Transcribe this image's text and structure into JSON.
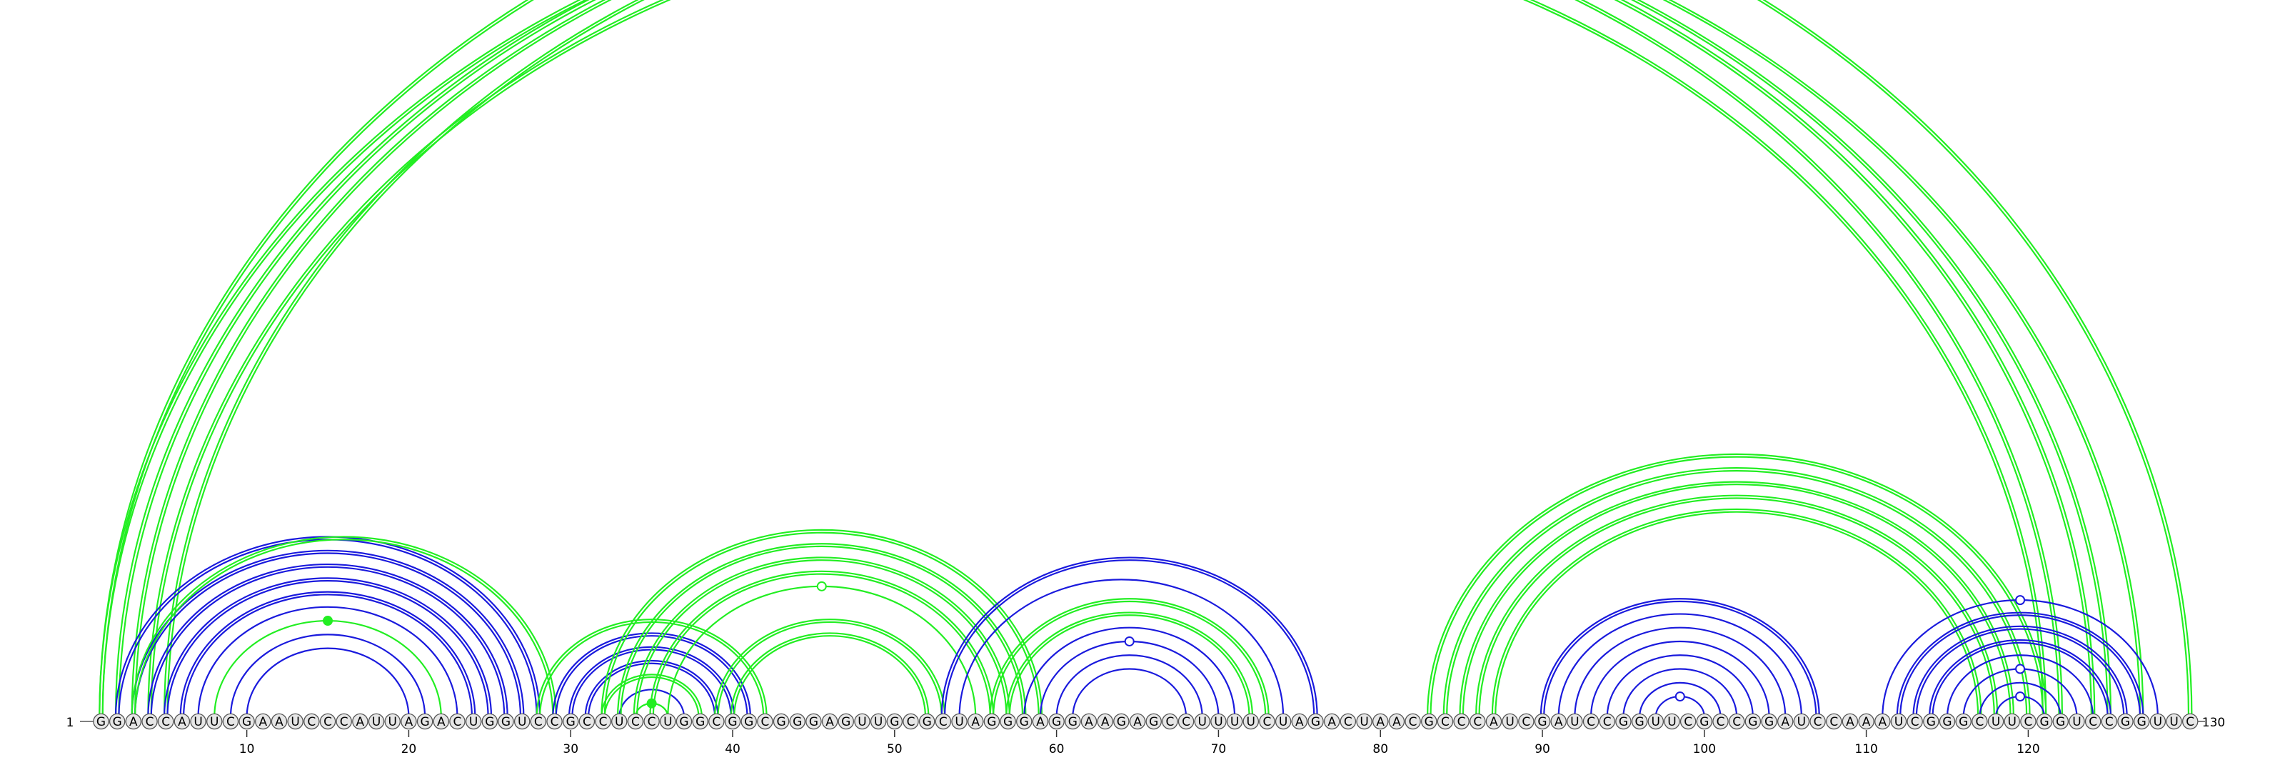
{
  "diagram": {
    "sequence": "GGACCAUUCGAAUCCCAUUAGACUGGUCCGCCUCCUGGCGGCGGGAGUUGCGCUAGGGAGGAAGAGCCUUUUCUAGACUAACGCCCAUCGAUCCGGUUCGCCGGAUCCAAAUCGGGCUUCGGUCCGGUUC",
    "start_label": "1",
    "end_label": "130",
    "tick_labels": [
      "10",
      "20",
      "30",
      "40",
      "50",
      "60",
      "70",
      "80",
      "90",
      "100",
      "110",
      "120"
    ],
    "colors": {
      "green": "#22ee22",
      "blue": "#1a1add",
      "base_fill": "#e6e6e6",
      "base_stroke": "#555555",
      "text": "#000000"
    },
    "arcs": [
      {
        "i": 1,
        "j": 122,
        "color": "green",
        "double": true
      },
      {
        "i": 2,
        "j": 124,
        "color": "green",
        "double": true
      },
      {
        "i": 3,
        "j": 125,
        "color": "green",
        "double": true
      },
      {
        "i": 4,
        "j": 121,
        "color": "green",
        "double": true
      },
      {
        "i": 5,
        "j": 127,
        "color": "green",
        "double": true
      },
      {
        "i": 1,
        "j": 130,
        "color": "green",
        "double": true,
        "marker": "open"
      },
      {
        "i": 2,
        "j": 28,
        "color": "blue",
        "double": true
      },
      {
        "i": 3,
        "j": 27,
        "color": "blue",
        "double": true
      },
      {
        "i": 4,
        "j": 26,
        "color": "blue",
        "double": true
      },
      {
        "i": 5,
        "j": 25,
        "color": "blue",
        "double": true
      },
      {
        "i": 6,
        "j": 24,
        "color": "blue",
        "double": true
      },
      {
        "i": 7,
        "j": 23,
        "color": "blue",
        "double": false
      },
      {
        "i": 8,
        "j": 22,
        "color": "green",
        "double": false,
        "marker": "filled"
      },
      {
        "i": 9,
        "j": 21,
        "color": "blue",
        "double": false
      },
      {
        "i": 10,
        "j": 20,
        "color": "blue",
        "double": false
      },
      {
        "i": 3,
        "j": 29,
        "color": "green",
        "double": true
      },
      {
        "i": 28,
        "j": 42,
        "color": "green",
        "double": true
      },
      {
        "i": 29,
        "j": 41,
        "color": "blue",
        "double": true
      },
      {
        "i": 30,
        "j": 40,
        "color": "blue",
        "double": true
      },
      {
        "i": 31,
        "j": 39,
        "color": "blue",
        "double": true
      },
      {
        "i": 32,
        "j": 38,
        "color": "green",
        "double": true
      },
      {
        "i": 33,
        "j": 37,
        "color": "blue",
        "double": false
      },
      {
        "i": 34,
        "j": 36,
        "color": "green",
        "double": false,
        "marker": "filled"
      },
      {
        "i": 32,
        "j": 59,
        "color": "green",
        "double": true
      },
      {
        "i": 33,
        "j": 58,
        "color": "green",
        "double": true
      },
      {
        "i": 34,
        "j": 57,
        "color": "green",
        "double": true
      },
      {
        "i": 35,
        "j": 56,
        "color": "green",
        "double": true
      },
      {
        "i": 36,
        "j": 55,
        "color": "green",
        "double": false,
        "marker": "open"
      },
      {
        "i": 39,
        "j": 53,
        "color": "green",
        "double": true
      },
      {
        "i": 40,
        "j": 52,
        "color": "green",
        "double": true
      },
      {
        "i": 53,
        "j": 76,
        "color": "blue",
        "double": true
      },
      {
        "i": 54,
        "j": 74,
        "color": "blue",
        "double": false
      },
      {
        "i": 56,
        "j": 73,
        "color": "green",
        "double": true
      },
      {
        "i": 57,
        "j": 72,
        "color": "green",
        "double": true
      },
      {
        "i": 58,
        "j": 71,
        "color": "blue",
        "double": false
      },
      {
        "i": 59,
        "j": 70,
        "color": "blue",
        "double": false,
        "marker": "open"
      },
      {
        "i": 60,
        "j": 69,
        "color": "blue",
        "double": false
      },
      {
        "i": 61,
        "j": 68,
        "color": "blue",
        "double": false
      },
      {
        "i": 83,
        "j": 121,
        "color": "green",
        "double": true
      },
      {
        "i": 84,
        "j": 120,
        "color": "green",
        "double": true
      },
      {
        "i": 85,
        "j": 119,
        "color": "green",
        "double": true
      },
      {
        "i": 86,
        "j": 118,
        "color": "green",
        "double": true
      },
      {
        "i": 87,
        "j": 117,
        "color": "green",
        "double": true
      },
      {
        "i": 90,
        "j": 107,
        "color": "blue",
        "double": true
      },
      {
        "i": 91,
        "j": 106,
        "color": "blue",
        "double": false
      },
      {
        "i": 92,
        "j": 105,
        "color": "blue",
        "double": false
      },
      {
        "i": 93,
        "j": 104,
        "color": "blue",
        "double": false
      },
      {
        "i": 94,
        "j": 103,
        "color": "blue",
        "double": false
      },
      {
        "i": 95,
        "j": 102,
        "color": "blue",
        "double": false
      },
      {
        "i": 96,
        "j": 101,
        "color": "blue",
        "double": false
      },
      {
        "i": 97,
        "j": 100,
        "color": "blue",
        "double": false,
        "marker": "open"
      },
      {
        "i": 111,
        "j": 128,
        "color": "blue",
        "double": false,
        "marker": "open"
      },
      {
        "i": 112,
        "j": 127,
        "color": "blue",
        "double": true
      },
      {
        "i": 113,
        "j": 126,
        "color": "blue",
        "double": true
      },
      {
        "i": 114,
        "j": 125,
        "color": "blue",
        "double": true
      },
      {
        "i": 115,
        "j": 124,
        "color": "blue",
        "double": false
      },
      {
        "i": 116,
        "j": 123,
        "color": "blue",
        "double": false,
        "marker": "open"
      },
      {
        "i": 117,
        "j": 122,
        "color": "blue",
        "double": false
      },
      {
        "i": 118,
        "j": 121,
        "color": "blue",
        "double": false,
        "marker": "open"
      }
    ]
  }
}
